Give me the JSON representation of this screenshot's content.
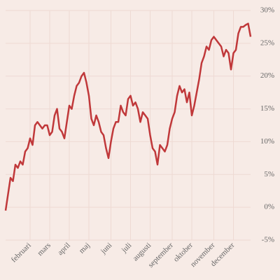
{
  "chart_data": {
    "type": "line",
    "categories": [
      null,
      null,
      null,
      null,
      null,
      null,
      null,
      null,
      null,
      null,
      "februari",
      null,
      null,
      null,
      null,
      null,
      null,
      null,
      "mars",
      null,
      null,
      null,
      null,
      null,
      null,
      null,
      "april",
      null,
      null,
      null,
      null,
      null,
      null,
      null,
      "maj",
      null,
      null,
      null,
      null,
      null,
      null,
      null,
      null,
      "juni",
      null,
      null,
      null,
      null,
      null,
      null,
      null,
      "juli",
      null,
      null,
      null,
      null,
      null,
      null,
      null,
      "augusti",
      null,
      null,
      null,
      null,
      null,
      null,
      null,
      null,
      "september",
      null,
      null,
      null,
      null,
      null,
      null,
      null,
      "oktober",
      null,
      null,
      null,
      null,
      null,
      null,
      null,
      null,
      "november",
      null,
      null,
      null,
      null,
      null,
      null,
      null,
      "december",
      null,
      null,
      null,
      null,
      null,
      null,
      null
    ],
    "values": [
      -0.5,
      2,
      4.5,
      4,
      6.5,
      6,
      7,
      6.5,
      8.5,
      9,
      10.5,
      9.5,
      12.5,
      13,
      12.5,
      12,
      12.5,
      12.5,
      11,
      11.5,
      14,
      15,
      12,
      11.5,
      10.5,
      13,
      15.5,
      15,
      17,
      18.5,
      19,
      20,
      20.5,
      19,
      17,
      13.5,
      12.5,
      14,
      13,
      11.5,
      11,
      9,
      7.5,
      10,
      12,
      13,
      13,
      15.5,
      14.5,
      14,
      16.5,
      17,
      15.5,
      16,
      15,
      13,
      14.5,
      14,
      13.5,
      11,
      9,
      8.5,
      6.5,
      9.5,
      9,
      8.5,
      9.5,
      12,
      13.5,
      14.5,
      17,
      18.5,
      17.5,
      18,
      16,
      17.5,
      14,
      15.5,
      17.5,
      19.5,
      22,
      23,
      24.5,
      24,
      25.5,
      26,
      25.5,
      25,
      24.5,
      23,
      24,
      23.5,
      21,
      23.5,
      24,
      26.5,
      27.5,
      27.5,
      27.8,
      28,
      26
    ],
    "color": "#c0383a",
    "ylim": [
      -5,
      30
    ],
    "yticks": [
      {
        "value": -5,
        "label": "-5%"
      },
      {
        "value": 0,
        "label": "0%"
      },
      {
        "value": 5,
        "label": "5%"
      },
      {
        "value": 10,
        "label": "10%"
      },
      {
        "value": 15,
        "label": "15%"
      },
      {
        "value": 20,
        "label": "20%"
      },
      {
        "value": 25,
        "label": "25%"
      },
      {
        "value": 30,
        "label": "30%"
      }
    ],
    "grid": true
  }
}
